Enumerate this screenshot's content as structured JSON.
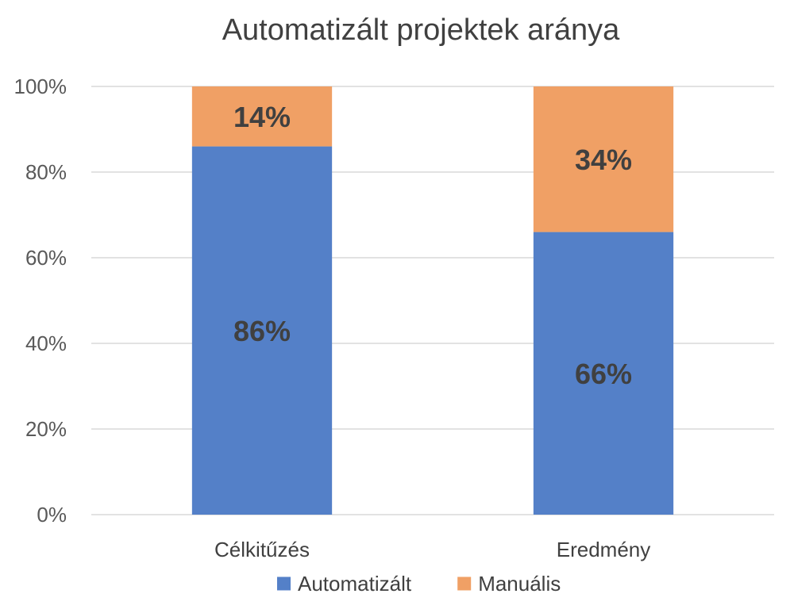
{
  "chart_data": {
    "type": "bar",
    "stacked": "percent",
    "title": "Automatizált projektek aránya",
    "xlabel": "",
    "ylabel": "",
    "categories": [
      "Célkitűzés",
      "Eredmény"
    ],
    "ylim": [
      0,
      100
    ],
    "yticks": [
      "0%",
      "20%",
      "40%",
      "60%",
      "80%",
      "100%"
    ],
    "grid": true,
    "legend_position": "bottom",
    "series": [
      {
        "name": "Automatizált",
        "values": [
          86,
          66
        ],
        "labels": [
          "86%",
          "66%"
        ],
        "color": "#5480c8"
      },
      {
        "name": "Manuális",
        "values": [
          14,
          34
        ],
        "labels": [
          "14%",
          "34%"
        ],
        "color": "#f0a065"
      }
    ]
  }
}
